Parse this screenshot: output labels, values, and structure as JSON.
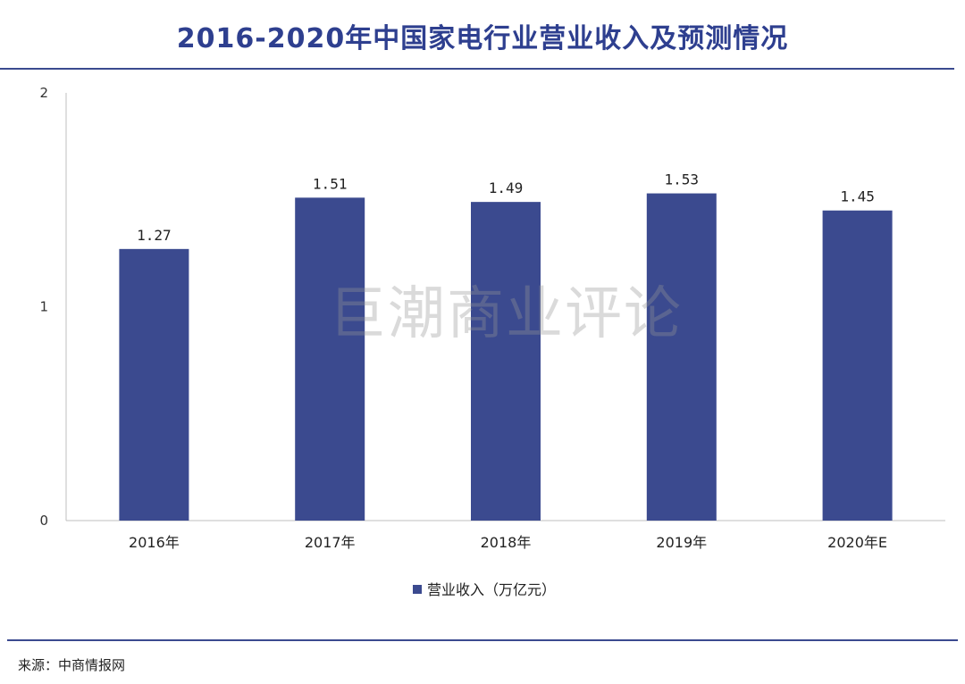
{
  "title": "2016-2020年中国家电行业营业收入及预测情况",
  "source": "来源：中商情报网",
  "watermark": "巨潮商业评论",
  "colors": {
    "bar": "#3b4a8f",
    "title": "#2e3f8f",
    "axis": "#bfbfbf"
  },
  "chart_data": {
    "type": "bar",
    "title": "2016-2020年中国家电行业营业收入及预测情况",
    "categories": [
      "2016年",
      "2017年",
      "2018年",
      "2019年",
      "2020年E"
    ],
    "series": [
      {
        "name": "营业收入（万亿元）",
        "values": [
          1.27,
          1.51,
          1.49,
          1.53,
          1.45
        ]
      }
    ],
    "data_labels": [
      "1.27",
      "1.51",
      "1.49",
      "1.53",
      "1.45"
    ],
    "ylim": [
      0,
      2
    ],
    "yticks": [
      "0",
      "1",
      "2"
    ],
    "grid": false,
    "legend_position": "bottom"
  }
}
